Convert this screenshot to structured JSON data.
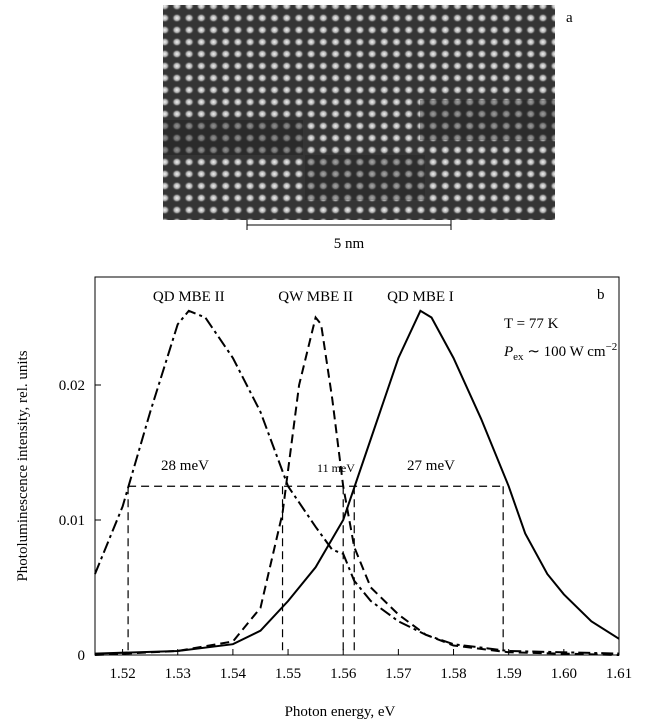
{
  "panel_a": {
    "label": "a",
    "scale_bar": "5 nm"
  },
  "chart_data": {
    "type": "line",
    "panel_label": "b",
    "x_label": "Photon energy, eV",
    "y_label": "Photoluminescence intensity, rel. units",
    "xlim": [
      1.515,
      1.61
    ],
    "ylim": [
      0,
      0.028
    ],
    "xticks": [
      1.52,
      1.53,
      1.54,
      1.55,
      1.56,
      1.57,
      1.58,
      1.59,
      {
        "value": 1.6,
        "label": "1.60"
      },
      1.61
    ],
    "yticks": [
      0,
      0.01,
      0.02
    ],
    "series": [
      {
        "name": "QD MBE II",
        "color": "#000000",
        "style": "dashdot",
        "x": [
          1.515,
          1.52,
          1.525,
          1.53,
          1.532,
          1.535,
          1.54,
          1.545,
          1.55,
          1.555,
          1.558,
          1.56,
          1.562,
          1.565,
          1.57,
          1.575,
          1.58,
          1.59,
          1.61
        ],
        "values": [
          0.006,
          0.011,
          0.018,
          0.0245,
          0.0255,
          0.025,
          0.022,
          0.018,
          0.0125,
          0.0095,
          0.0078,
          0.0075,
          0.0055,
          0.004,
          0.0025,
          0.0015,
          0.0008,
          0.0003,
          0.0001
        ]
      },
      {
        "name": "QW MBE II",
        "color": "#000000",
        "style": "dashed",
        "x": [
          1.515,
          1.53,
          1.54,
          1.545,
          1.549,
          1.552,
          1.555,
          1.556,
          1.558,
          1.56,
          1.562,
          1.565,
          1.57,
          1.575,
          1.58,
          1.59,
          1.61
        ],
        "values": [
          0,
          0.0003,
          0.001,
          0.0035,
          0.0105,
          0.02,
          0.025,
          0.0245,
          0.019,
          0.0125,
          0.008,
          0.005,
          0.003,
          0.0015,
          0.0007,
          0.0002,
          0
        ]
      },
      {
        "name": "QD MBE I",
        "color": "#000000",
        "style": "solid",
        "x": [
          1.515,
          1.53,
          1.54,
          1.545,
          1.55,
          1.555,
          1.56,
          1.565,
          1.57,
          1.574,
          1.576,
          1.58,
          1.585,
          1.59,
          1.593,
          1.597,
          1.6,
          1.605,
          1.61
        ],
        "values": [
          0.0001,
          0.0003,
          0.0008,
          0.0018,
          0.004,
          0.0065,
          0.01,
          0.016,
          0.022,
          0.0255,
          0.025,
          0.022,
          0.0175,
          0.0125,
          0.009,
          0.006,
          0.0045,
          0.0025,
          0.0012
        ]
      }
    ],
    "fwhm_level": 0.0125,
    "fwhm_lines": [
      1.521,
      1.549,
      1.56,
      1.562,
      1.589
    ],
    "widths": [
      "28 meV",
      "11 meV",
      "27 meV"
    ],
    "temperature": "T = 77 K",
    "power": [
      "P",
      "ex",
      " ∼ 100 W cm",
      "−2"
    ]
  }
}
